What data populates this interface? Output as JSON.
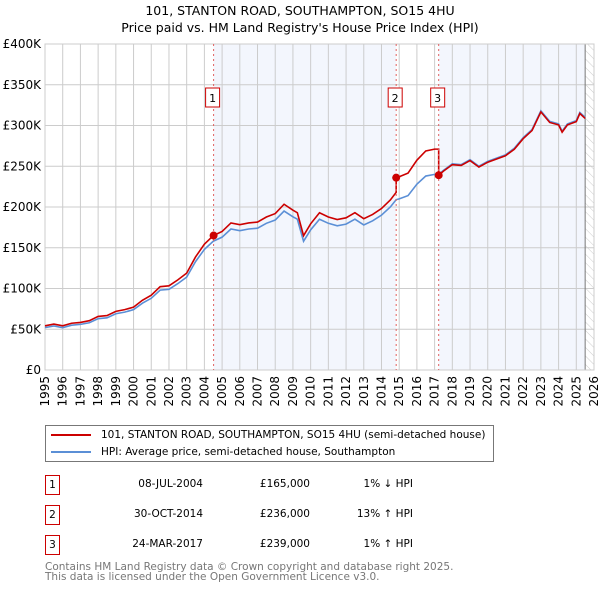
{
  "chart_data": {
    "type": "line",
    "title": "101, STANTON ROAD, SOUTHAMPTON, SO15 4HU",
    "subtitle": "Price paid vs. HM Land Registry's House Price Index (HPI)",
    "xlim": [
      1995,
      2026
    ],
    "ylim": [
      0,
      400000
    ],
    "x_ticks": [
      "1995",
      "1996",
      "1997",
      "1998",
      "1999",
      "2000",
      "2001",
      "2002",
      "2003",
      "2004",
      "2005",
      "2006",
      "2007",
      "2008",
      "2009",
      "2010",
      "2011",
      "2012",
      "2013",
      "2014",
      "2015",
      "2016",
      "2017",
      "2018",
      "2019",
      "2020",
      "2021",
      "2022",
      "2023",
      "2024",
      "2025",
      "2026"
    ],
    "y_ticks": [
      {
        "v": 0,
        "label": "£0"
      },
      {
        "v": 50000,
        "label": "£50K"
      },
      {
        "v": 100000,
        "label": "£100K"
      },
      {
        "v": 150000,
        "label": "£150K"
      },
      {
        "v": 200000,
        "label": "£200K"
      },
      {
        "v": 250000,
        "label": "£250K"
      },
      {
        "v": 300000,
        "label": "£300K"
      },
      {
        "v": 350000,
        "label": "£350K"
      },
      {
        "v": 400000,
        "label": "£400K"
      }
    ],
    "grid": true,
    "series": [
      {
        "name": "101, STANTON ROAD, SOUTHAMPTON, SO15 4HU (semi-detached house)",
        "color": "#cc0000",
        "derived_from": "hpi_and_sales"
      },
      {
        "name": "HPI: Average price, semi-detached house, Southampton",
        "color": "#5b8fd6",
        "x": [
          1995,
          1995.5,
          1996,
          1996.5,
          1997,
          1997.5,
          1998,
          1998.5,
          1999,
          1999.5,
          2000,
          2000.5,
          2001,
          2001.5,
          2002,
          2002.5,
          2003,
          2003.5,
          2004,
          2004.5,
          2005,
          2005.5,
          2006,
          2006.5,
          2007,
          2007.5,
          2008,
          2008.5,
          2009,
          2009.25,
          2009.6,
          2010,
          2010.5,
          2011,
          2011.5,
          2012,
          2012.5,
          2013,
          2013.5,
          2014,
          2014.5,
          2014.83,
          2015,
          2015.5,
          2016,
          2016.5,
          2017,
          2017.23,
          2017.5,
          2018,
          2018.5,
          2019,
          2019.5,
          2020,
          2020.5,
          2021,
          2021.5,
          2022,
          2022.5,
          2023,
          2023.5,
          2024,
          2024.2,
          2024.5,
          2025,
          2025.2,
          2025.5
        ],
        "y": [
          52000,
          54000,
          52000,
          55000,
          56000,
          58000,
          63000,
          64000,
          69000,
          71000,
          74000,
          82000,
          88000,
          98000,
          99000,
          106000,
          114000,
          133000,
          148000,
          158000,
          163000,
          173000,
          171000,
          173000,
          174000,
          180000,
          184000,
          195000,
          188000,
          185000,
          158000,
          172000,
          185000,
          180000,
          177000,
          179000,
          185000,
          178000,
          183000,
          190000,
          200000,
          209000,
          210000,
          214000,
          228000,
          238000,
          240000,
          240000,
          245000,
          253000,
          252000,
          258000,
          250000,
          256000,
          260000,
          264000,
          272000,
          285000,
          295000,
          318000,
          305000,
          302000,
          293000,
          302000,
          306000,
          316000,
          310000
        ]
      }
    ],
    "sales": [
      {
        "n": "1",
        "x": 2004.52,
        "date": "08-JUL-2004",
        "price": 165000,
        "price_label": "£165,000",
        "hpi_label": "1% ↓ HPI"
      },
      {
        "n": "2",
        "x": 2014.83,
        "date": "30-OCT-2014",
        "price": 236000,
        "price_label": "£236,000",
        "hpi_label": "13% ↑ HPI"
      },
      {
        "n": "3",
        "x": 2017.23,
        "date": "24-MAR-2017",
        "price": 239000,
        "price_label": "£239,000",
        "hpi_label": "1% ↑ HPI"
      }
    ],
    "hatched_from": 2025.5
  },
  "legend": {
    "red": "101, STANTON ROAD, SOUTHAMPTON, SO15 4HU (semi-detached house)",
    "blue": "HPI: Average price, semi-detached house, Southampton"
  },
  "footer": {
    "line1": "Contains HM Land Registry data © Crown copyright and database right 2025.",
    "line2": "This data is licensed under the Open Government Licence v3.0."
  }
}
